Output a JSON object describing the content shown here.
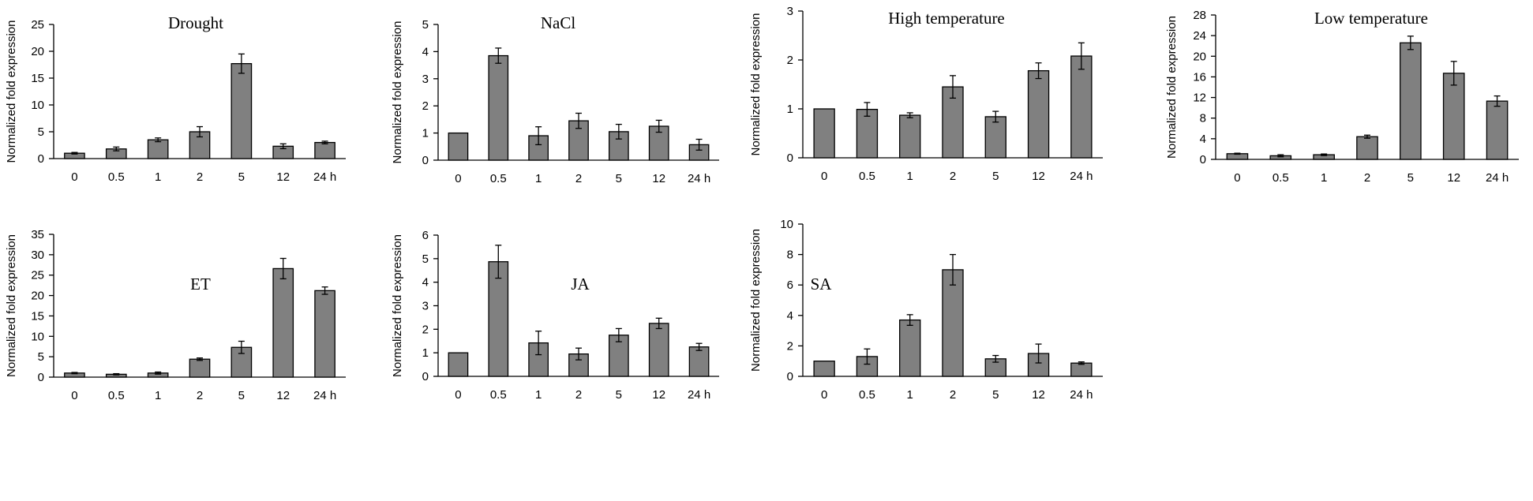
{
  "chart_data": [
    {
      "type": "bar",
      "title": "Drought",
      "ylabel": "Normalized fold expression",
      "categories": [
        "0",
        "0.5",
        "1",
        "2",
        "5",
        "12",
        "24 h"
      ],
      "values": [
        1.0,
        1.8,
        3.5,
        5.0,
        17.7,
        2.3,
        3.0
      ],
      "errors": [
        0.15,
        0.35,
        0.35,
        0.95,
        1.8,
        0.45,
        0.25
      ],
      "ylim": [
        0,
        25
      ],
      "yticks": [
        0,
        5,
        10,
        15,
        20,
        25
      ]
    },
    {
      "type": "bar",
      "title": "NaCl",
      "ylabel": "Normalized fold expression",
      "categories": [
        "0",
        "0.5",
        "1",
        "2",
        "5",
        "12",
        "24 h"
      ],
      "values": [
        1.0,
        3.85,
        0.9,
        1.45,
        1.05,
        1.25,
        0.57
      ],
      "errors": [
        0.0,
        0.28,
        0.33,
        0.28,
        0.27,
        0.22,
        0.2
      ],
      "ylim": [
        0,
        5
      ],
      "yticks": [
        0,
        1,
        2,
        3,
        4,
        5
      ]
    },
    {
      "type": "bar",
      "title": "High temperature",
      "ylabel": "Normalized fold expression",
      "categories": [
        "0",
        "0.5",
        "1",
        "2",
        "5",
        "12",
        "24 h"
      ],
      "values": [
        1.0,
        0.99,
        0.87,
        1.45,
        0.84,
        1.78,
        2.08
      ],
      "errors": [
        0.0,
        0.14,
        0.05,
        0.23,
        0.11,
        0.16,
        0.27
      ],
      "ylim": [
        0,
        3
      ],
      "yticks": [
        0,
        1,
        2,
        3
      ]
    },
    {
      "type": "bar",
      "title": "Low temperature",
      "ylabel": "Normalized fold expression",
      "categories": [
        "0",
        "0.5",
        "1",
        "2",
        "5",
        "12",
        "24 h"
      ],
      "values": [
        1.1,
        0.7,
        0.9,
        4.4,
        22.6,
        16.7,
        11.3
      ],
      "errors": [
        0.1,
        0.2,
        0.15,
        0.3,
        1.3,
        2.3,
        1.0
      ],
      "ylim": [
        0,
        28
      ],
      "yticks": [
        0,
        4,
        8,
        12,
        16,
        20,
        24,
        28
      ]
    },
    {
      "type": "bar",
      "title": "ET",
      "ylabel": "Normalized fold expression",
      "categories": [
        "0",
        "0.5",
        "1",
        "2",
        "5",
        "12",
        "24 h"
      ],
      "values": [
        1.0,
        0.7,
        1.0,
        4.4,
        7.3,
        26.6,
        21.2
      ],
      "errors": [
        0.15,
        0.15,
        0.25,
        0.3,
        1.5,
        2.5,
        0.9
      ],
      "ylim": [
        0,
        35
      ],
      "yticks": [
        0,
        5,
        10,
        15,
        20,
        25,
        30,
        35
      ]
    },
    {
      "type": "bar",
      "title": "JA",
      "ylabel": "Normalized fold expression",
      "categories": [
        "0",
        "0.5",
        "1",
        "2",
        "5",
        "12",
        "24 h"
      ],
      "values": [
        1.0,
        4.87,
        1.42,
        0.95,
        1.75,
        2.25,
        1.25
      ],
      "errors": [
        0.0,
        0.7,
        0.5,
        0.25,
        0.28,
        0.22,
        0.15
      ],
      "ylim": [
        0,
        6
      ],
      "yticks": [
        0,
        1,
        2,
        3,
        4,
        5,
        6
      ]
    },
    {
      "type": "bar",
      "title": "SA",
      "ylabel": "Normalized fold expression",
      "categories": [
        "0",
        "0.5",
        "1",
        "2",
        "5",
        "12",
        "24 h"
      ],
      "values": [
        1.0,
        1.3,
        3.7,
        7.0,
        1.15,
        1.5,
        0.87
      ],
      "errors": [
        0.0,
        0.5,
        0.35,
        1.0,
        0.22,
        0.62,
        0.08
      ],
      "ylim": [
        0,
        10
      ],
      "yticks": [
        0,
        2,
        4,
        6,
        8,
        10
      ]
    }
  ]
}
